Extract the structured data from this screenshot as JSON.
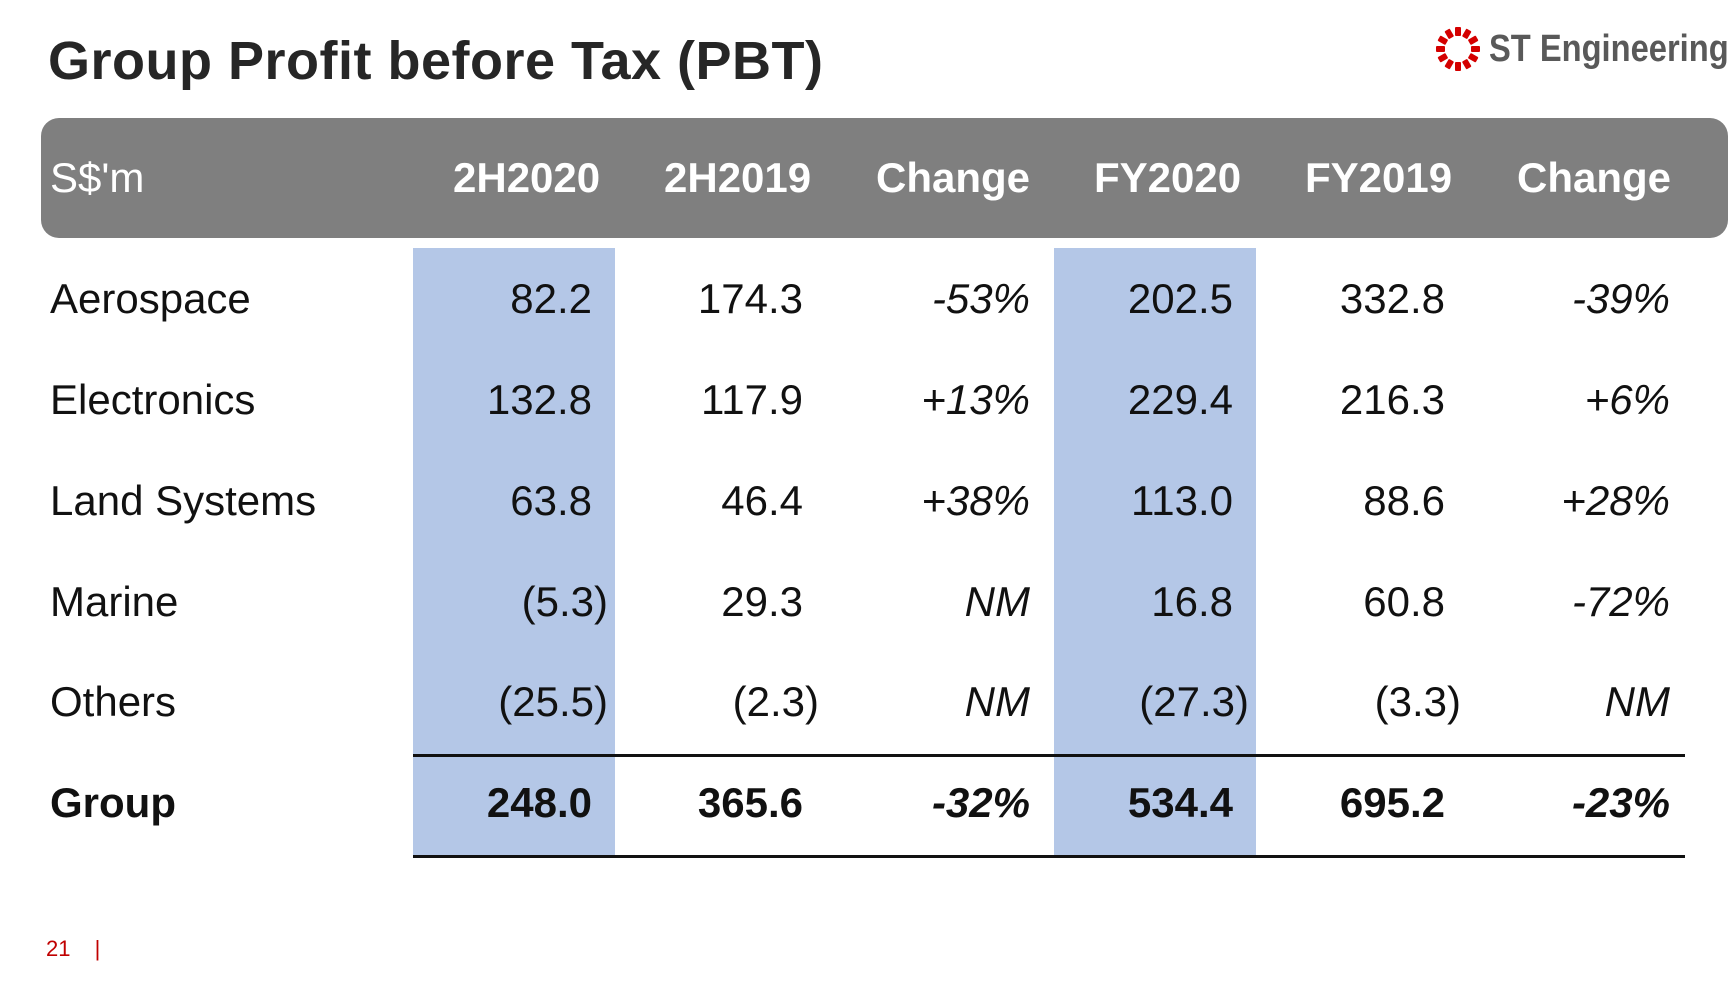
{
  "slide": {
    "title": "Group Profit before Tax (PBT)",
    "logo_text": "ST Engineering",
    "page_number": "21",
    "page_separator": "|"
  },
  "table": {
    "headers": [
      "S$'m",
      "2H2020",
      "2H2019",
      "Change",
      "FY2020",
      "FY2019",
      "Change"
    ],
    "rows": [
      {
        "label": "Aerospace",
        "h2020": "82.2",
        "h2019": "174.3",
        "hchg": "-53%",
        "fy2020": "202.5",
        "fy2019": "332.8",
        "fychg": "-39%"
      },
      {
        "label": "Electronics",
        "h2020": "132.8",
        "h2019": "117.9",
        "hchg": "+13%",
        "fy2020": "229.4",
        "fy2019": "216.3",
        "fychg": "+6%"
      },
      {
        "label": "Land Systems",
        "h2020": "63.8",
        "h2019": "46.4",
        "hchg": "+38%",
        "fy2020": "113.0",
        "fy2019": "88.6",
        "fychg": "+28%"
      },
      {
        "label": "Marine",
        "h2020": "(5.3)",
        "h2019": "29.3",
        "hchg": "NM",
        "fy2020": "16.8",
        "fy2019": "60.8",
        "fychg": "-72%"
      },
      {
        "label": "Others",
        "h2020": "(25.5)",
        "h2019": "(2.3)",
        "hchg": "NM",
        "fy2020": "(27.3)",
        "fy2019": "(3.3)",
        "fychg": "NM"
      },
      {
        "label": "Group",
        "h2020": "248.0",
        "h2019": "365.6",
        "hchg": "-32%",
        "fy2020": "534.4",
        "fy2019": "695.2",
        "fychg": "-23%"
      }
    ]
  },
  "colors": {
    "header_bg": "#7f7f7f",
    "highlight_column": "#b4c7e7",
    "brand_red": "#c00000"
  }
}
